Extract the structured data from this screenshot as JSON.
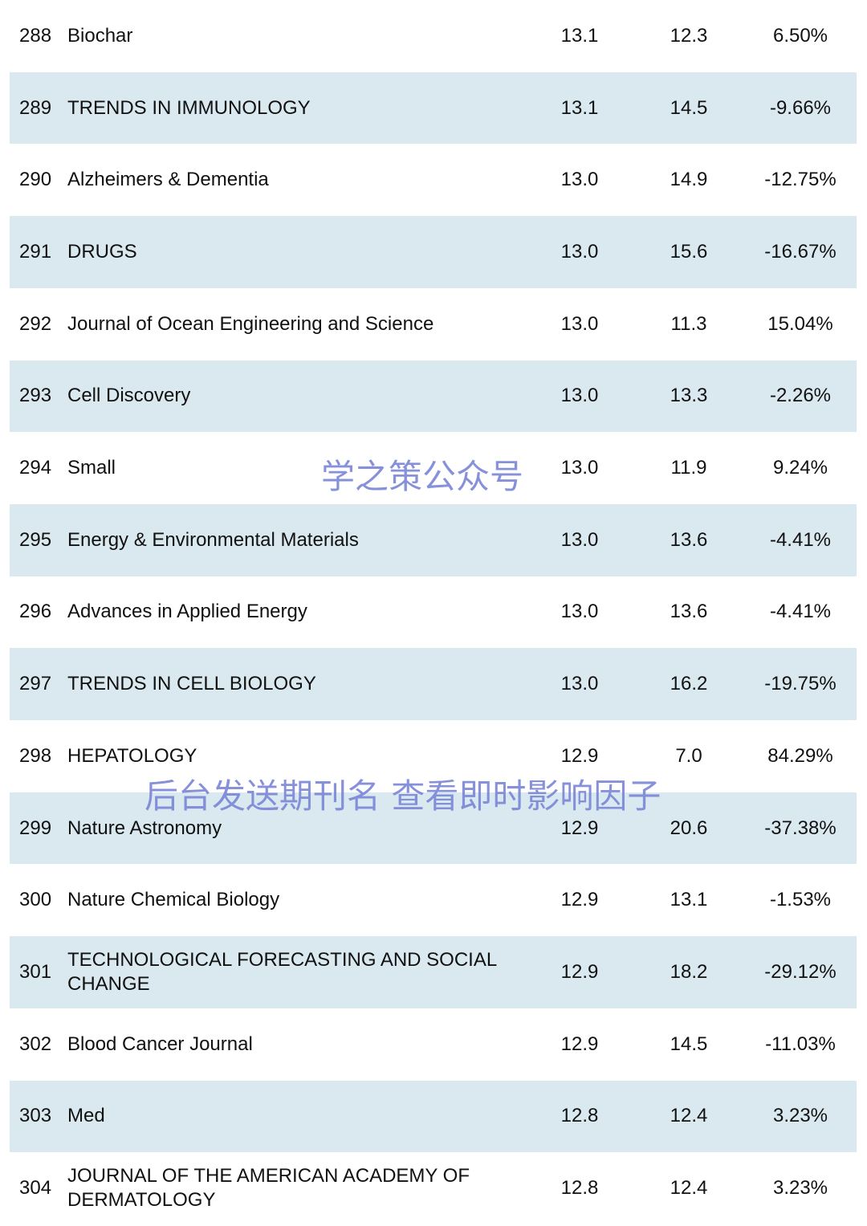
{
  "table": {
    "rows": [
      [
        "288",
        "Biochar",
        "13.1",
        "12.3",
        "6.50%"
      ],
      [
        "289",
        "TRENDS IN IMMUNOLOGY",
        "13.1",
        "14.5",
        "-9.66%"
      ],
      [
        "290",
        "Alzheimers & Dementia",
        "13.0",
        "14.9",
        "-12.75%"
      ],
      [
        "291",
        "DRUGS",
        "13.0",
        "15.6",
        "-16.67%"
      ],
      [
        "292",
        "Journal of Ocean Engineering and Science",
        "13.0",
        "11.3",
        "15.04%"
      ],
      [
        "293",
        "Cell Discovery",
        "13.0",
        "13.3",
        "-2.26%"
      ],
      [
        "294",
        "Small",
        "13.0",
        "11.9",
        "9.24%"
      ],
      [
        "295",
        "Energy & Environmental Materials",
        "13.0",
        "13.6",
        "-4.41%"
      ],
      [
        "296",
        "Advances in Applied Energy",
        "13.0",
        "13.6",
        "-4.41%"
      ],
      [
        "297",
        "TRENDS IN CELL BIOLOGY",
        "13.0",
        "16.2",
        "-19.75%"
      ],
      [
        "298",
        "HEPATOLOGY",
        "12.9",
        "7.0",
        "84.29%"
      ],
      [
        "299",
        "Nature Astronomy",
        "12.9",
        "20.6",
        "-37.38%"
      ],
      [
        "300",
        "Nature Chemical Biology",
        "12.9",
        "13.1",
        "-1.53%"
      ],
      [
        "301",
        "TECHNOLOGICAL FORECASTING AND SOCIAL CHANGE",
        "12.9",
        "18.2",
        "-29.12%"
      ],
      [
        "302",
        "Blood Cancer Journal",
        "12.9",
        "14.5",
        "-11.03%"
      ],
      [
        "303",
        "Med",
        "12.8",
        "12.4",
        "3.23%"
      ],
      [
        "304",
        "JOURNAL OF THE AMERICAN ACADEMY OF DERMATOLOGY",
        "12.8",
        "12.4",
        "3.23%"
      ]
    ]
  },
  "watermarks": [
    "学之策公众号",
    "后台发送期刊名 查看即时影响因子"
  ]
}
